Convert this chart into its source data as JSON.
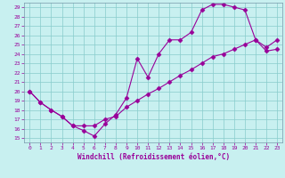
{
  "xlabel": "Windchill (Refroidissement éolien,°C)",
  "bg_color": "#c8f0f0",
  "line_color": "#990099",
  "xlim": [
    -0.5,
    23.5
  ],
  "ylim": [
    14.5,
    29.5
  ],
  "xticks": [
    0,
    1,
    2,
    3,
    4,
    5,
    6,
    7,
    8,
    9,
    10,
    11,
    12,
    13,
    14,
    15,
    16,
    17,
    18,
    19,
    20,
    21,
    22,
    23
  ],
  "yticks": [
    15,
    16,
    17,
    18,
    19,
    20,
    21,
    22,
    23,
    24,
    25,
    26,
    27,
    28,
    29
  ],
  "line1_x": [
    0,
    1,
    2,
    3,
    4,
    5,
    6,
    7,
    8,
    9,
    10,
    11,
    12,
    13,
    14,
    15,
    16,
    17,
    18,
    19,
    20,
    21,
    22,
    23
  ],
  "line1_y": [
    20.0,
    18.8,
    18.0,
    17.3,
    16.3,
    15.8,
    15.2,
    16.5,
    17.5,
    19.3,
    23.5,
    21.5,
    24.0,
    25.5,
    25.5,
    26.3,
    28.7,
    29.3,
    29.3,
    29.0,
    28.7,
    25.5,
    24.7,
    25.5
  ],
  "line2_x": [
    0,
    1,
    2,
    3,
    4,
    5,
    6,
    7,
    8,
    9,
    10,
    11,
    12,
    13,
    14,
    15,
    16,
    17,
    18,
    19,
    20,
    21,
    22,
    23
  ],
  "line2_y": [
    20.0,
    18.8,
    18.0,
    17.3,
    16.3,
    16.3,
    16.3,
    17.0,
    17.3,
    18.3,
    19.0,
    19.7,
    20.3,
    21.0,
    21.7,
    22.3,
    23.0,
    23.7,
    24.0,
    24.5,
    25.0,
    25.5,
    24.3,
    24.5
  ]
}
